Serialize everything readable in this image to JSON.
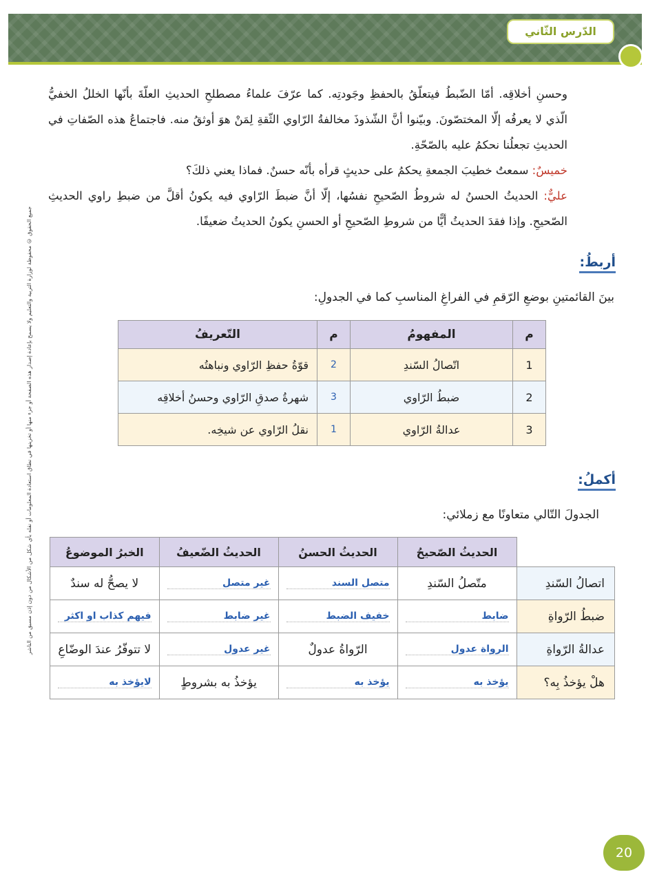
{
  "header": {
    "lesson_title": "الدّرس الثّاني"
  },
  "paragraph": [
    {
      "speaker": "",
      "text": "وحسنِ أخلاقِه. أمّا الضّبطُ فيتعلّقُ بالحفظِ وجَودتِه. كما عرّفَ علماءُ مصطلحِ الحديثِ العلّةَ بأنّها الخللُ الخفيُّ الّذي لا يعرفُه إلّا المختصّونَ. وبيّنوا أنَّ الشّذوذَ مخالفةُ الرّاوي الثّقةِ لِمَنْ هوَ أوثقُ منه. فاجتماعُ هذه الصّفاتِ في الحديثِ تجعلُنا نحكمُ عليه بالصّحّةِ."
    },
    {
      "speaker": "خميسٌ:",
      "text": " سمعتُ خطيبَ الجمعةِ يحكمُ على حديثٍ قرأه بأنّه حسنٌ. فماذا يعني ذلكَ؟"
    },
    {
      "speaker": "عليٌّ:",
      "text": " الحديثُ الحسنُ له شروطُ الصّحيحِ نفسُها، إلّا أنَّ ضبطَ الرّاوي فيه يكونُ أقلَّ من ضبطِ راوي الحديثِ الصّحيحِ. وإذا فقدَ الحديثُ أيًّا من شروطِ الصّحيحِ أو الحسنِ يكونُ الحديثُ ضعيفًا."
    }
  ],
  "section1": {
    "heading": "أربطُ:",
    "instruction": "بينَ القائمتينِ بوضعِ الرّقمِ في الفراغِ المناسبِ كما في الجدولِ:",
    "headers": [
      "م",
      "المفهومُ",
      "م",
      "التّعريفُ"
    ],
    "rows": [
      {
        "n": "1",
        "concept": "اتّصالُ السّندِ",
        "answer": "2",
        "definition": "قوّةُ حفظِ الرّاوي ونباهتُه"
      },
      {
        "n": "2",
        "concept": "ضبطُ الرّاوي",
        "answer": "3",
        "definition": "شهرةُ صدقِ الرّاوي وحسنُ أخلاقِه"
      },
      {
        "n": "3",
        "concept": "عدالةُ الرّاوي",
        "answer": "1",
        "definition": "نقلُ الرّاوي عن شيخِه."
      }
    ]
  },
  "section2": {
    "heading": "أكملُ:",
    "instruction": "الجدولَ التّالي متعاونًا مع زملائي:",
    "headers": [
      "الحديثُ الصّحيحُ",
      "الحديثُ الحسنُ",
      "الحديثُ الضّعيفُ",
      "الخبرُ الموضوعُ"
    ],
    "rows": [
      {
        "label": "اتصالُ السّندِ",
        "cells": [
          {
            "t": "متّصلُ السّندِ",
            "a": false
          },
          {
            "t": "متصل السند",
            "a": true
          },
          {
            "t": "غير متصل",
            "a": true
          },
          {
            "t": "لا يصحُّ له سندٌ",
            "a": false
          }
        ]
      },
      {
        "label": "ضبطُ الرّواةِ",
        "cells": [
          {
            "t": "ضابط",
            "a": true
          },
          {
            "t": "خفيف الضبط",
            "a": true
          },
          {
            "t": "غير ضابط",
            "a": true
          },
          {
            "t": "فيهم كذاب او اكثر",
            "a": true
          }
        ]
      },
      {
        "label": "عدالةُ الرّواةِ",
        "cells": [
          {
            "t": "الرواة عدول",
            "a": true
          },
          {
            "t": "الرّواةُ عدولٌ",
            "a": false
          },
          {
            "t": "غير عدول",
            "a": true
          },
          {
            "t": "لا تتوفّرُ عندَ الوضّاعِ",
            "a": false
          }
        ]
      },
      {
        "label": "هلْ يؤخذُ بِه؟",
        "cells": [
          {
            "t": "يؤخذ به",
            "a": true
          },
          {
            "t": "يؤخذ به",
            "a": true
          },
          {
            "t": "يؤخذُ به بشروطٍ",
            "a": false
          },
          {
            "t": "لايؤخذ به",
            "a": true
          }
        ]
      }
    ]
  },
  "side_notice": "جميع الحقوق © محفوظة لوزارة التربية والتعليم ولا يسمح بإعادة إصدار هذه الصفحة أو جزء منها أو تخزينها في نطاق استعادة المعلومات أو نقله بأي شكل من الأشكال من دون إذن مسبق من الناشر",
  "page_number": "20",
  "colors": {
    "accent_green": "#9cb83a",
    "header_purple": "#d9d3ea",
    "speaker_red": "#c0392b",
    "answer_blue": "#2b5fb0",
    "heading_blue": "#1f4e8c"
  }
}
